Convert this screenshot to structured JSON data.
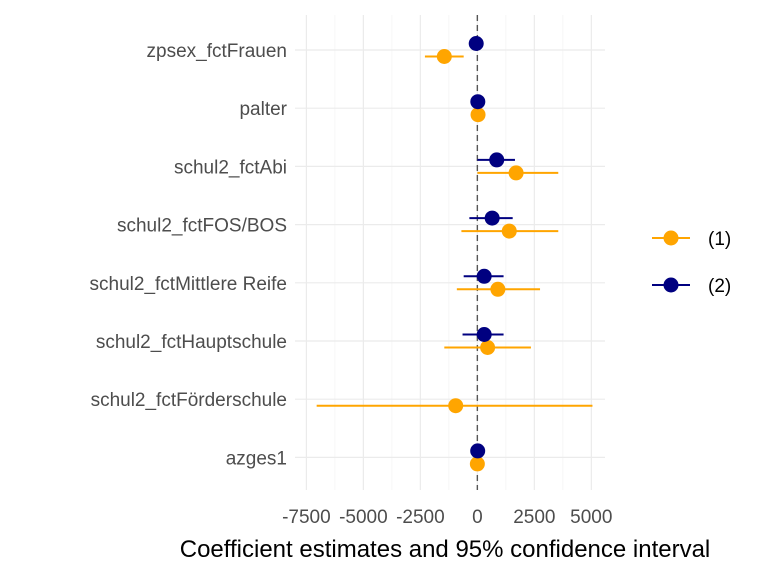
{
  "chart_data": {
    "type": "scatter",
    "subtype": "coefficient-plot",
    "title": "",
    "xlabel": "Coefficient estimates and 95% confidence interval",
    "ylabel": "",
    "xlim": [
      -8000,
      5600
    ],
    "xticks": [
      -7500,
      -5000,
      -2500,
      0,
      2500,
      5000
    ],
    "xtick_labels": [
      "-7500",
      "-5000",
      "-2500",
      "0",
      "2500",
      "5000"
    ],
    "reference_line": 0,
    "grid": true,
    "legend_position": "right",
    "categories": [
      "zpsex_fctFrauen",
      "palter",
      "schul2_fctAbi",
      "schul2_fctFOS/BOS",
      "schul2_fctMittlere Reife",
      "schul2_fctHauptschule",
      "schul2_fctFörderschule",
      "azges1"
    ],
    "series": [
      {
        "name": "(1)",
        "color": "#FFA500",
        "estimates": [
          -1450,
          30,
          1700,
          1400,
          900,
          450,
          -950,
          0
        ],
        "lower": [
          -2300,
          -50,
          0,
          -700,
          -900,
          -1450,
          -7050,
          -100
        ],
        "upper": [
          -600,
          110,
          3550,
          3550,
          2750,
          2350,
          5050,
          100
        ]
      },
      {
        "name": "(2)",
        "color": "#000080",
        "estimates": [
          -50,
          20,
          850,
          650,
          300,
          300,
          null,
          15
        ],
        "lower": [
          -150,
          -40,
          0,
          -350,
          -600,
          -650,
          null,
          -40
        ],
        "upper": [
          50,
          80,
          1650,
          1550,
          1150,
          1150,
          null,
          70
        ]
      }
    ]
  }
}
